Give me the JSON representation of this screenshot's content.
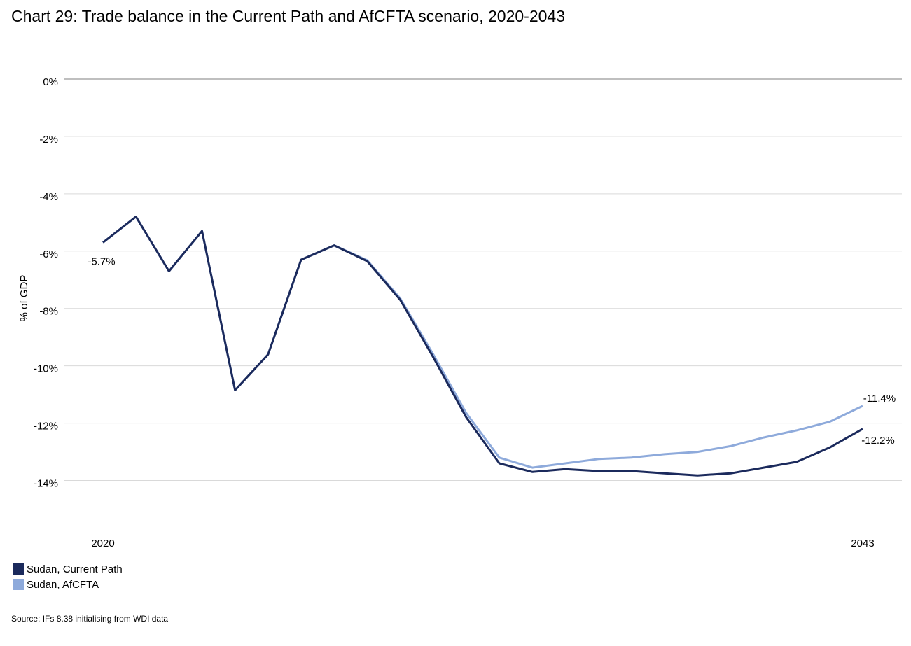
{
  "title": "Chart 29: Trade balance in the Current Path and AfCFTA scenario, 2020-2043",
  "source": "Source: IFs 8.38 initialising from WDI data",
  "colors": {
    "current_path": "#1b2a5c",
    "afcfta": "#8eaadb",
    "gridline": "#d9d9d9",
    "zeroline": "#7f7f7f"
  },
  "chart_data": {
    "type": "line",
    "title": "Chart 29: Trade balance in the Current Path and AfCFTA scenario, 2020-2043",
    "xlabel": "",
    "ylabel": "% of GDP",
    "x": [
      2020,
      2021,
      2022,
      2023,
      2024,
      2025,
      2026,
      2027,
      2028,
      2029,
      2030,
      2031,
      2032,
      2033,
      2034,
      2035,
      2036,
      2037,
      2038,
      2039,
      2040,
      2041,
      2042,
      2043
    ],
    "x_tick_labels": [
      {
        "x": 2020,
        "label": "2020"
      },
      {
        "x": 2043,
        "label": "2043"
      }
    ],
    "ylim": [
      -15.5,
      0
    ],
    "yticks": [
      {
        "value": 0,
        "label": "0%"
      },
      {
        "value": -2,
        "label": "-2%"
      },
      {
        "value": -4,
        "label": "-4%"
      },
      {
        "value": -6,
        "label": "-6%"
      },
      {
        "value": -8,
        "label": "-8%"
      },
      {
        "value": -10,
        "label": "-10%"
      },
      {
        "value": -12,
        "label": "-12%"
      },
      {
        "value": -14,
        "label": "-14%"
      }
    ],
    "grid": true,
    "legend_position": "bottom-left",
    "series": [
      {
        "name": "Sudan, Current Path",
        "color": "#1b2a5c",
        "values": [
          -5.7,
          -4.8,
          -6.7,
          -5.3,
          -10.85,
          -9.6,
          -6.3,
          -5.8,
          -6.35,
          -7.7,
          -9.7,
          -11.8,
          -13.4,
          -13.7,
          -13.6,
          -13.67,
          -13.67,
          -13.75,
          -13.82,
          -13.75,
          -13.55,
          -13.35,
          -12.85,
          -12.2
        ],
        "annotations": [
          {
            "x": 2020,
            "label": "-5.7%"
          },
          {
            "x": 2043,
            "label": "-12.2%"
          }
        ]
      },
      {
        "name": "Sudan, AfCFTA",
        "color": "#8eaadb",
        "values": [
          -5.7,
          -4.8,
          -6.7,
          -5.3,
          -10.85,
          -9.6,
          -6.3,
          -5.8,
          -6.32,
          -7.65,
          -9.6,
          -11.65,
          -13.2,
          -13.55,
          -13.4,
          -13.25,
          -13.2,
          -13.08,
          -13.0,
          -12.8,
          -12.5,
          -12.25,
          -11.95,
          -11.4
        ],
        "annotations": [
          {
            "x": 2043,
            "label": "-11.4%"
          }
        ]
      }
    ]
  }
}
